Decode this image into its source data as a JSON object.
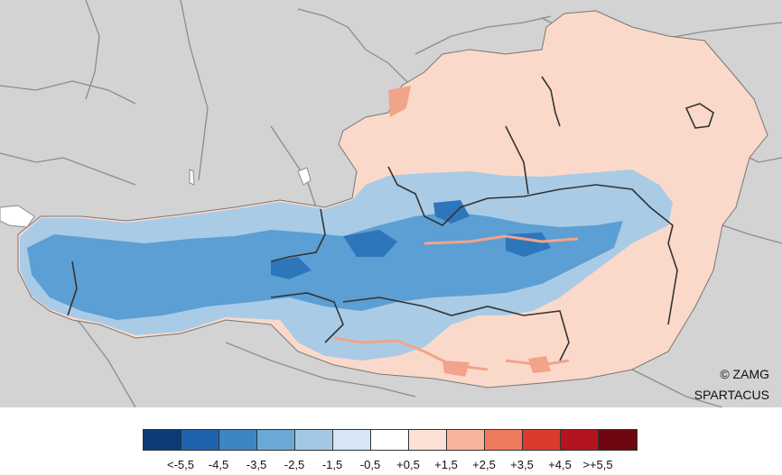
{
  "credit": {
    "line1": "© ZAMG",
    "line2": "SPARTACUS"
  },
  "legend": {
    "colors": [
      "#0d3b78",
      "#1f63ac",
      "#3c86c4",
      "#6aa9d6",
      "#a3c8e6",
      "#d6e6f4",
      "#ffffff",
      "#fde0d6",
      "#f7b49b",
      "#ee7a5c",
      "#db3b2f",
      "#b2151d",
      "#700612"
    ],
    "labels": [
      "<-5,5",
      "-4,5",
      "-3,5",
      "-2,5",
      "-1,5",
      "-0,5",
      "+0,5",
      "+1,5",
      "+2,5",
      "+3,5",
      "+4,5",
      ">+5,5"
    ]
  },
  "map_colors": {
    "background": "#d3d3d3",
    "borders": "#8c8c8c",
    "state_borders": "#333333",
    "lakes": "#ffffff",
    "warm": "#fbd9ca",
    "cold_light": "#a9cbe6",
    "cold_mid": "#5b9fd4",
    "cold_dark": "#2e76bb",
    "warm_strong": "#f2a48a"
  }
}
